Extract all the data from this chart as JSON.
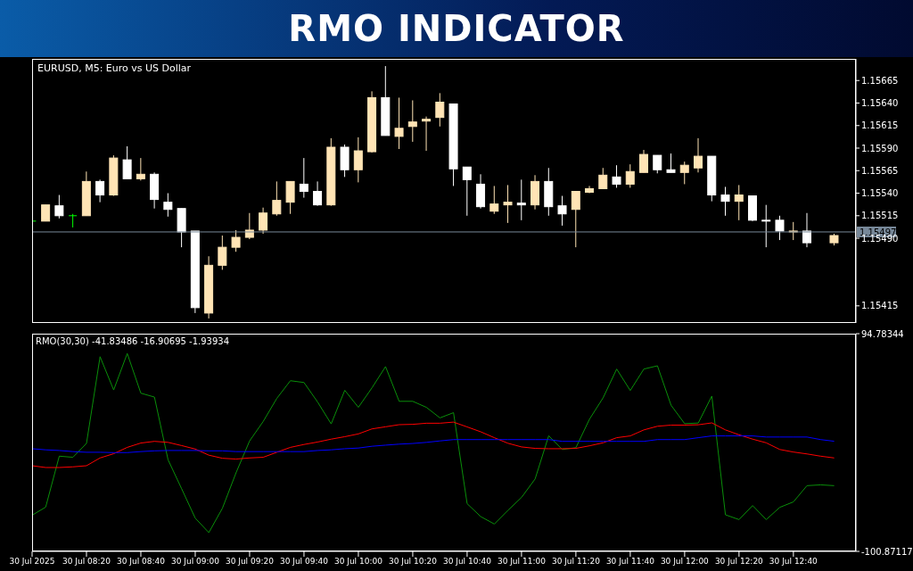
{
  "chart_data": [
    {
      "type": "candlestick",
      "title": "RMO INDICATOR",
      "subtitle": "EURUSD, M5:  Euro vs US Dollar",
      "x": [
        "2025-07-30T08:00",
        "2025-07-30T08:05",
        "2025-07-30T08:10",
        "2025-07-30T08:15",
        "2025-07-30T08:20",
        "2025-07-30T08:25",
        "2025-07-30T08:30",
        "2025-07-30T08:35",
        "2025-07-30T08:40",
        "2025-07-30T08:45",
        "2025-07-30T08:50",
        "2025-07-30T08:55",
        "2025-07-30T09:00",
        "2025-07-30T09:05",
        "2025-07-30T09:10",
        "2025-07-30T09:15",
        "2025-07-30T09:20",
        "2025-07-30T09:25",
        "2025-07-30T09:30",
        "2025-07-30T09:35",
        "2025-07-30T09:40",
        "2025-07-30T09:45",
        "2025-07-30T09:50",
        "2025-07-30T09:55",
        "2025-07-30T10:00",
        "2025-07-30T10:05",
        "2025-07-30T10:10",
        "2025-07-30T10:15",
        "2025-07-30T10:20",
        "2025-07-30T10:25",
        "2025-07-30T10:30",
        "2025-07-30T10:35",
        "2025-07-30T10:40",
        "2025-07-30T10:45",
        "2025-07-30T10:50",
        "2025-07-30T10:55",
        "2025-07-30T11:00",
        "2025-07-30T11:05",
        "2025-07-30T11:10",
        "2025-07-30T11:15",
        "2025-07-30T11:20",
        "2025-07-30T11:25",
        "2025-07-30T11:30",
        "2025-07-30T11:35",
        "2025-07-30T11:40",
        "2025-07-30T11:45",
        "2025-07-30T11:50",
        "2025-07-30T11:55",
        "2025-07-30T12:00",
        "2025-07-30T12:05",
        "2025-07-30T12:10",
        "2025-07-30T12:15",
        "2025-07-30T12:20",
        "2025-07-30T12:25",
        "2025-07-30T12:30",
        "2025-07-30T12:35",
        "2025-07-30T12:40",
        "2025-07-30T12:45",
        "2025-07-30T12:55"
      ],
      "ohlc": [
        [
          1.15509,
          1.15509,
          1.15509,
          1.15509
        ],
        [
          1.15509,
          1.15527,
          1.15509,
          1.15527
        ],
        [
          1.15526,
          1.15538,
          1.15512,
          1.15515
        ],
        [
          1.15515,
          1.15517,
          1.15502,
          1.15515
        ],
        [
          1.15515,
          1.15564,
          1.15515,
          1.15553
        ],
        [
          1.15553,
          1.15555,
          1.1553,
          1.15538
        ],
        [
          1.15538,
          1.15582,
          1.15537,
          1.15579
        ],
        [
          1.15577,
          1.15592,
          1.15556,
          1.15556
        ],
        [
          1.15556,
          1.15579,
          1.15554,
          1.15561
        ],
        [
          1.15561,
          1.15563,
          1.15523,
          1.15533
        ],
        [
          1.1553,
          1.1554,
          1.15514,
          1.15522
        ],
        [
          1.15523,
          1.15523,
          1.1548,
          1.15497
        ],
        [
          1.15498,
          1.15498,
          1.15407,
          1.15413
        ],
        [
          1.15407,
          1.1547,
          1.15401,
          1.1546
        ],
        [
          1.1546,
          1.15493,
          1.15455,
          1.1548
        ],
        [
          1.1548,
          1.15499,
          1.15475,
          1.15491
        ],
        [
          1.15491,
          1.15518,
          1.15489,
          1.15499
        ],
        [
          1.15499,
          1.15524,
          1.15495,
          1.15518
        ],
        [
          1.15517,
          1.15553,
          1.15515,
          1.15532
        ],
        [
          1.1553,
          1.15553,
          1.15517,
          1.15553
        ],
        [
          1.1555,
          1.15579,
          1.15535,
          1.15542
        ],
        [
          1.15542,
          1.15553,
          1.15526,
          1.15527
        ],
        [
          1.15527,
          1.15601,
          1.15526,
          1.15591
        ],
        [
          1.15591,
          1.15594,
          1.15558,
          1.15566
        ],
        [
          1.15566,
          1.15602,
          1.15552,
          1.15587
        ],
        [
          1.15586,
          1.15653,
          1.15585,
          1.15646
        ],
        [
          1.15646,
          1.15681,
          1.15604,
          1.15604
        ],
        [
          1.15603,
          1.15646,
          1.15589,
          1.15612
        ],
        [
          1.15614,
          1.15643,
          1.15597,
          1.15619
        ],
        [
          1.1562,
          1.15625,
          1.15587,
          1.15622
        ],
        [
          1.15624,
          1.15651,
          1.15614,
          1.15641
        ],
        [
          1.15639,
          1.15639,
          1.15548,
          1.15567
        ],
        [
          1.15569,
          1.15569,
          1.15515,
          1.15555
        ],
        [
          1.1555,
          1.15561,
          1.15523,
          1.15525
        ],
        [
          1.1552,
          1.15548,
          1.15517,
          1.15528
        ],
        [
          1.15527,
          1.15549,
          1.15507,
          1.1553
        ],
        [
          1.15529,
          1.15555,
          1.1551,
          1.15527
        ],
        [
          1.15527,
          1.1556,
          1.15522,
          1.15553
        ],
        [
          1.15553,
          1.15568,
          1.15515,
          1.15525
        ],
        [
          1.15526,
          1.15537,
          1.15504,
          1.15517
        ],
        [
          1.15522,
          1.15542,
          1.1548,
          1.15542
        ],
        [
          1.15541,
          1.15548,
          1.1554,
          1.15545
        ],
        [
          1.15545,
          1.15568,
          1.15545,
          1.1556
        ],
        [
          1.15558,
          1.15571,
          1.15546,
          1.1555
        ],
        [
          1.1555,
          1.15572,
          1.15546,
          1.15564
        ],
        [
          1.15563,
          1.15588,
          1.15563,
          1.15583
        ],
        [
          1.15582,
          1.15582,
          1.15562,
          1.15566
        ],
        [
          1.15566,
          1.15584,
          1.15563,
          1.15563
        ],
        [
          1.15563,
          1.15575,
          1.1555,
          1.15571
        ],
        [
          1.15568,
          1.15601,
          1.15563,
          1.15581
        ],
        [
          1.15581,
          1.15581,
          1.15531,
          1.15538
        ],
        [
          1.15538,
          1.15547,
          1.15515,
          1.15531
        ],
        [
          1.15531,
          1.15549,
          1.1551,
          1.15538
        ],
        [
          1.15537,
          1.15537,
          1.15509,
          1.1551
        ],
        [
          1.1551,
          1.15527,
          1.1548,
          1.15509
        ],
        [
          1.1551,
          1.15515,
          1.15488,
          1.15498
        ],
        [
          1.15497,
          1.15508,
          1.15488,
          1.15498
        ],
        [
          1.15498,
          1.15518,
          1.1548,
          1.15485
        ],
        [
          1.15485,
          1.15495,
          1.15482,
          1.15493
        ]
      ],
      "colors": [
        "#00ff00",
        "#ffe4b5",
        "#ffffff",
        "#00ff00",
        "#ffe4b5",
        "#ffffff",
        "#ffe4b5",
        "#ffffff",
        "#ffe4b5",
        "#ffffff",
        "#ffffff",
        "#ffffff",
        "#ffffff",
        "#ffe4b5",
        "#ffe4b5",
        "#ffe4b5",
        "#ffe4b5",
        "#ffe4b5",
        "#ffe4b5",
        "#ffe4b5",
        "#ffffff",
        "#ffffff",
        "#ffe4b5",
        "#ffffff",
        "#ffe4b5",
        "#ffe4b5",
        "#ffffff",
        "#ffe4b5",
        "#ffe4b5",
        "#ffe4b5",
        "#ffe4b5",
        "#ffffff",
        "#ffffff",
        "#ffffff",
        "#ffe4b5",
        "#ffe4b5",
        "#ffffff",
        "#ffe4b5",
        "#ffffff",
        "#ffffff",
        "#ffe4b5",
        "#ffe4b5",
        "#ffe4b5",
        "#ffffff",
        "#ffe4b5",
        "#ffe4b5",
        "#ffffff",
        "#ffffff",
        "#ffe4b5",
        "#ffe4b5",
        "#ffffff",
        "#ffffff",
        "#ffe4b5",
        "#ffffff",
        "#ffffff",
        "#ffffff",
        "#ffe4b5",
        "#ffffff",
        "#ffe4b5"
      ],
      "xlim": [
        "2025-07-30T08:00",
        "2025-07-30T13:03"
      ],
      "ylim": [
        1.15396,
        1.15689
      ],
      "yticks": [
        1.15665,
        {
          "value": 1.1564,
          "label": "1.15640"
        },
        1.15615,
        {
          "value": 1.1559,
          "label": "1.15590"
        },
        1.15565,
        {
          "value": 1.1554,
          "label": "1.15540"
        },
        1.15515,
        {
          "value": 1.1549,
          "label": "1.15490"
        },
        1.15415
      ],
      "ref_lines": [
        {
          "axis": "y",
          "value": 1.15497,
          "label": "1.15497",
          "color": "#778899"
        }
      ],
      "tick_labels": "y"
    },
    {
      "type": "line",
      "title": "RMO(30,30) -41.83486 -16.90695 -1.93934",
      "x": [
        "2025-07-30T08:00",
        "2025-07-30T08:05",
        "2025-07-30T08:10",
        "2025-07-30T08:15",
        "2025-07-30T08:20",
        "2025-07-30T08:25",
        "2025-07-30T08:30",
        "2025-07-30T08:35",
        "2025-07-30T08:40",
        "2025-07-30T08:45",
        "2025-07-30T08:50",
        "2025-07-30T08:55",
        "2025-07-30T09:00",
        "2025-07-30T09:05",
        "2025-07-30T09:10",
        "2025-07-30T09:15",
        "2025-07-30T09:20",
        "2025-07-30T09:25",
        "2025-07-30T09:30",
        "2025-07-30T09:35",
        "2025-07-30T09:40",
        "2025-07-30T09:45",
        "2025-07-30T09:50",
        "2025-07-30T09:55",
        "2025-07-30T10:00",
        "2025-07-30T10:05",
        "2025-07-30T10:10",
        "2025-07-30T10:15",
        "2025-07-30T10:20",
        "2025-07-30T10:25",
        "2025-07-30T10:30",
        "2025-07-30T10:35",
        "2025-07-30T10:40",
        "2025-07-30T10:45",
        "2025-07-30T10:50",
        "2025-07-30T10:55",
        "2025-07-30T11:00",
        "2025-07-30T11:05",
        "2025-07-30T11:10",
        "2025-07-30T11:15",
        "2025-07-30T11:20",
        "2025-07-30T11:25",
        "2025-07-30T11:30",
        "2025-07-30T11:35",
        "2025-07-30T11:40",
        "2025-07-30T11:45",
        "2025-07-30T11:50",
        "2025-07-30T11:55",
        "2025-07-30T12:00",
        "2025-07-30T12:05",
        "2025-07-30T12:10",
        "2025-07-30T12:15",
        "2025-07-30T12:20",
        "2025-07-30T12:25",
        "2025-07-30T12:30",
        "2025-07-30T12:35",
        "2025-07-30T12:40",
        "2025-07-30T12:45",
        "2025-07-30T12:50",
        "2025-07-30T12:55"
      ],
      "series": [
        {
          "color": "#0a8f0a",
          "values": [
            -68.4,
            -61.1,
            -15.3,
            -16.3,
            -3.9,
            74.1,
            44.2,
            77.0,
            41.3,
            37.8,
            -18.5,
            -44.6,
            -71.0,
            -84.0,
            -62.1,
            -30.3,
            -1.6,
            15.9,
            36.6,
            52.5,
            50.9,
            33.4,
            13.7,
            43.9,
            28.6,
            46.1,
            65.2,
            34.0,
            34.0,
            28.6,
            19.1,
            23.8,
            -58,
            -69.6,
            -76.3,
            -64.0,
            -52.4,
            -35.8,
            3.0,
            -9.3,
            -7.7,
            17.9,
            37.1,
            63.0,
            43.7,
            63.0,
            65.9,
            30.5,
            13.9,
            14.5,
            38.7,
            -68.0,
            -72.3,
            -59.7,
            -72.3,
            -61.3,
            -56.4,
            -41.8,
            -41.1,
            -41.8
          ]
        },
        {
          "color": "#ff0000",
          "values": [
            -23.9,
            -25.5,
            -25.5,
            -24.9,
            -23.9,
            -16.9,
            -13.1,
            -7.4,
            -3.5,
            -2.0,
            -2.9,
            -5.8,
            -8.9,
            -14.4,
            -17.2,
            -17.9,
            -16.9,
            -16.3,
            -11.8,
            -7.4,
            -4.8,
            -2.6,
            0.0,
            2.2,
            4.7,
            9.2,
            11.1,
            13.0,
            13.3,
            14.3,
            14.3,
            15.3,
            11,
            6.6,
            1.3,
            -3.7,
            -7.0,
            -8.3,
            -8.6,
            -8.6,
            -8.3,
            -6.0,
            -3.3,
            1.3,
            2.9,
            8.3,
            11.6,
            12.6,
            12.6,
            12.9,
            14.6,
            8.3,
            3.9,
            0.0,
            -3.3,
            -9.3,
            -11.6,
            -13.3,
            -15.3,
            -16.9
          ]
        },
        {
          "color": "#0000ff",
          "values": [
            -8.6,
            -9.6,
            -10.2,
            -11.2,
            -11.8,
            -11.8,
            -12.1,
            -12.1,
            -11.2,
            -10.5,
            -10.2,
            -10.2,
            -10.2,
            -10.5,
            -10.5,
            -11.2,
            -11.2,
            -11.2,
            -11.2,
            -11.2,
            -11.2,
            -10.2,
            -9.6,
            -8.6,
            -8.0,
            -6.4,
            -5.4,
            -4.5,
            -3.9,
            -2.9,
            -1.6,
            -0.4,
            -0.4,
            -0.4,
            -0.4,
            -0.4,
            -0.4,
            -0.4,
            -0.4,
            -2.0,
            -2.0,
            -2.0,
            -2.0,
            -2.0,
            -2.0,
            -2.0,
            -0.4,
            -0.4,
            -0.4,
            1.3,
            2.9,
            2.9,
            2.9,
            2.9,
            1.9,
            1.9,
            1.9,
            1.9,
            -0.4,
            -1.9
          ]
        }
      ],
      "xlim": [
        "2025-07-30T08:00",
        "2025-07-30T13:03"
      ],
      "xticks": [
        {
          "value": "2025-07-30T08:00",
          "label": "30 Jul 2025"
        },
        {
          "value": "2025-07-30T08:20",
          "label": "30 Jul 08:20"
        },
        {
          "value": "2025-07-30T08:40",
          "label": "30 Jul 08:40"
        },
        {
          "value": "2025-07-30T09:00",
          "label": "30 Jul 09:00"
        },
        {
          "value": "2025-07-30T09:20",
          "label": "30 Jul 09:20"
        },
        {
          "value": "2025-07-30T09:40",
          "label": "30 Jul 09:40"
        },
        {
          "value": "2025-07-30T10:00",
          "label": "30 Jul 10:00"
        },
        {
          "value": "2025-07-30T10:20",
          "label": "30 Jul 10:20"
        },
        {
          "value": "2025-07-30T10:40",
          "label": "30 Jul 10:40"
        },
        {
          "value": "2025-07-30T11:00",
          "label": "30 Jul 11:00"
        },
        {
          "value": "2025-07-30T11:20",
          "label": "30 Jul 11:20"
        },
        {
          "value": "2025-07-30T11:40",
          "label": "30 Jul 11:40"
        },
        {
          "value": "2025-07-30T12:00",
          "label": "30 Jul 12:00"
        },
        {
          "value": "2025-07-30T12:20",
          "label": "30 Jul 12:20"
        },
        {
          "value": "2025-07-30T12:40",
          "label": "30 Jul 12:40"
        }
      ],
      "ylim": [
        -100.87117,
        94.78344
      ],
      "yticks": [
        94.78344,
        -100.87117
      ],
      "marker": "none",
      "line_style": "solid"
    }
  ]
}
